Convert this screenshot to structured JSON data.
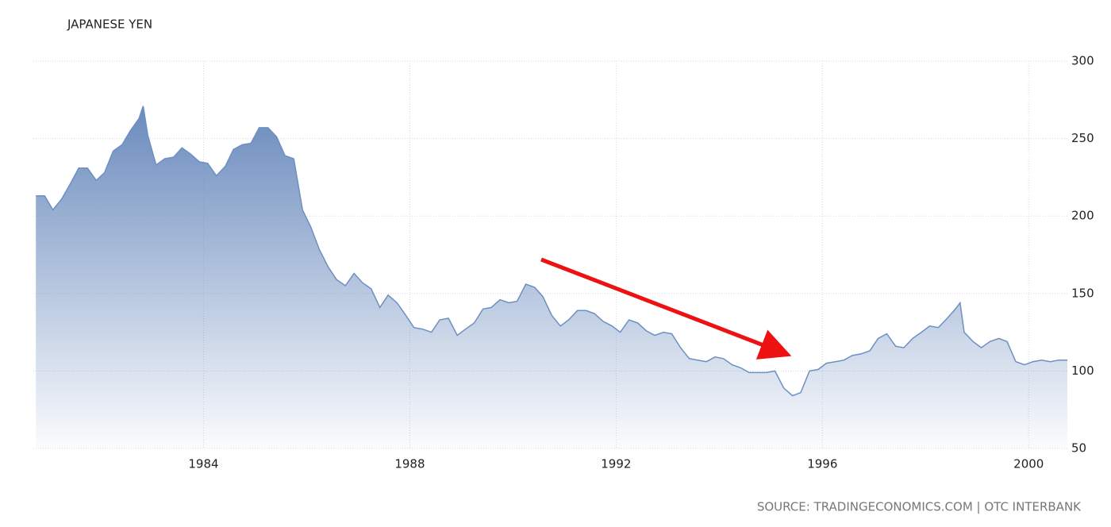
{
  "chart_data": {
    "type": "area",
    "title": "JAPANESE YEN",
    "source": "SOURCE: TRADINGECONOMICS.COM | OTC INTERBANK",
    "x": [
      1980.75,
      1980.92,
      1981.08,
      1981.25,
      1981.42,
      1981.58,
      1981.75,
      1981.92,
      1982.08,
      1982.25,
      1982.42,
      1982.58,
      1982.75,
      1982.83,
      1982.92,
      1983.08,
      1983.25,
      1983.42,
      1983.58,
      1983.75,
      1983.92,
      1984.08,
      1984.25,
      1984.42,
      1984.58,
      1984.75,
      1984.92,
      1985.08,
      1985.25,
      1985.42,
      1985.58,
      1985.75,
      1985.92,
      1986.08,
      1986.25,
      1986.42,
      1986.58,
      1986.75,
      1986.92,
      1987.08,
      1987.25,
      1987.42,
      1987.58,
      1987.75,
      1987.92,
      1988.08,
      1988.25,
      1988.42,
      1988.58,
      1988.75,
      1988.92,
      1989.08,
      1989.25,
      1989.42,
      1989.58,
      1989.75,
      1989.92,
      1990.08,
      1990.25,
      1990.42,
      1990.58,
      1990.75,
      1990.92,
      1991.08,
      1991.25,
      1991.42,
      1991.58,
      1991.75,
      1991.92,
      1992.08,
      1992.25,
      1992.42,
      1992.58,
      1992.75,
      1992.92,
      1993.08,
      1993.25,
      1993.42,
      1993.58,
      1993.75,
      1993.92,
      1994.08,
      1994.25,
      1994.42,
      1994.58,
      1994.75,
      1994.92,
      1995.08,
      1995.25,
      1995.42,
      1995.58,
      1995.75,
      1995.92,
      1996.08,
      1996.25,
      1996.42,
      1996.58,
      1996.75,
      1996.92,
      1997.08,
      1997.25,
      1997.42,
      1997.58,
      1997.75,
      1997.92,
      1998.08,
      1998.25,
      1998.42,
      1998.58,
      1998.67,
      1998.75,
      1998.92,
      1999.08,
      1999.25,
      1999.42,
      1999.58,
      1999.75,
      1999.92,
      2000.08,
      2000.25,
      2000.42,
      2000.58,
      2000.75
    ],
    "series": [
      {
        "name": "JAPANESE YEN",
        "color": "#6d8fc4",
        "values": [
          213,
          213,
          204,
          211,
          221,
          231,
          231,
          223,
          228,
          242,
          246,
          255,
          263,
          271,
          252,
          233,
          237,
          238,
          244,
          240,
          235,
          234,
          226,
          232,
          243,
          246,
          247,
          257,
          257,
          251,
          239,
          237,
          204,
          193,
          178,
          167,
          159,
          155,
          163,
          157,
          153,
          141,
          149,
          144,
          136,
          128,
          127,
          125,
          133,
          134,
          123,
          127,
          131,
          140,
          141,
          146,
          144,
          145,
          156,
          154,
          148,
          136,
          129,
          133,
          139,
          139,
          137,
          132,
          129,
          125,
          133,
          131,
          126,
          123,
          125,
          124,
          115,
          108,
          107,
          106,
          109,
          108,
          104,
          102,
          99,
          99,
          99,
          100,
          89,
          84,
          86,
          100,
          101,
          105,
          106,
          107,
          110,
          111,
          113,
          121,
          124,
          116,
          115,
          121,
          125,
          129,
          128,
          134,
          140,
          144,
          125,
          119,
          115,
          119,
          121,
          119,
          106,
          104,
          106,
          107,
          106,
          107,
          107
        ]
      }
    ],
    "xlim": [
      1980.7,
      2000.75
    ],
    "xticks": [
      1984,
      1988,
      1992,
      1996,
      2000
    ],
    "ylim": [
      50,
      300
    ],
    "yticks": [
      50,
      100,
      150,
      200,
      250,
      300
    ],
    "grid": true
  }
}
